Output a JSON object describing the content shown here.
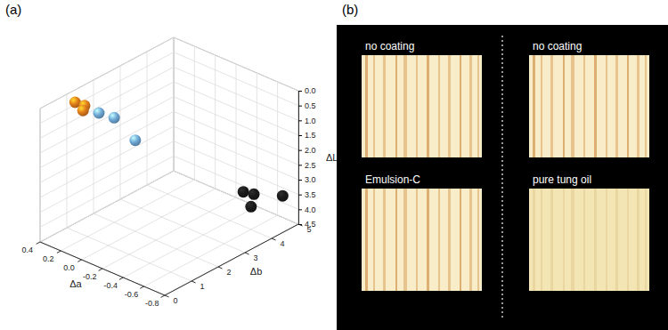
{
  "chart_data": {
    "type": "scatter3d",
    "title": "(a)",
    "x_label": "Δa",
    "y_label": "Δb",
    "z_label": "ΔL",
    "xlim": [
      0.4,
      -0.8
    ],
    "xticks": [
      0.4,
      0.2,
      {
        "value": 0,
        "label": "0.0"
      },
      -0.2,
      -0.4,
      -0.6,
      -0.8
    ],
    "ylim": [
      0,
      5
    ],
    "yticks": [
      0,
      1,
      2,
      3,
      4,
      5
    ],
    "zlim": [
      0,
      4.5
    ],
    "zticks": [
      {
        "value": 0,
        "label": "0.0"
      },
      0.5,
      {
        "value": 1,
        "label": "1.0"
      },
      1.5,
      {
        "value": 2,
        "label": "2.0"
      },
      2.5,
      {
        "value": 3,
        "label": "3.0"
      },
      3.5,
      {
        "value": 4,
        "label": "4.0"
      },
      4.5
    ],
    "grid": true,
    "marker": "sphere",
    "series": [
      {
        "color": "#e07b1a",
        "x": [
          0.32,
          0.28,
          0.27
        ],
        "y": [
          1.0,
          1.2,
          1.1
        ],
        "z": [
          0.15,
          0.3,
          0.4
        ]
      },
      {
        "color": "#6fa8d6",
        "x": [
          0.22,
          0.15,
          0.05
        ],
        "y": [
          1.5,
          1.8,
          2.2
        ],
        "z": [
          0.6,
          0.8,
          1.6
        ]
      },
      {
        "color": "#1a1a1a",
        "x": [
          -0.45,
          -0.5,
          -0.55,
          -0.7
        ],
        "y": [
          4.3,
          4.5,
          4.2,
          4.8
        ],
        "z": [
          3.6,
          3.7,
          3.9,
          3.6
        ]
      }
    ]
  },
  "panel_b": {
    "label": "(b)",
    "images": [
      "no coating",
      "no coating",
      "Emulsion-C",
      "pure tung oil"
    ]
  }
}
